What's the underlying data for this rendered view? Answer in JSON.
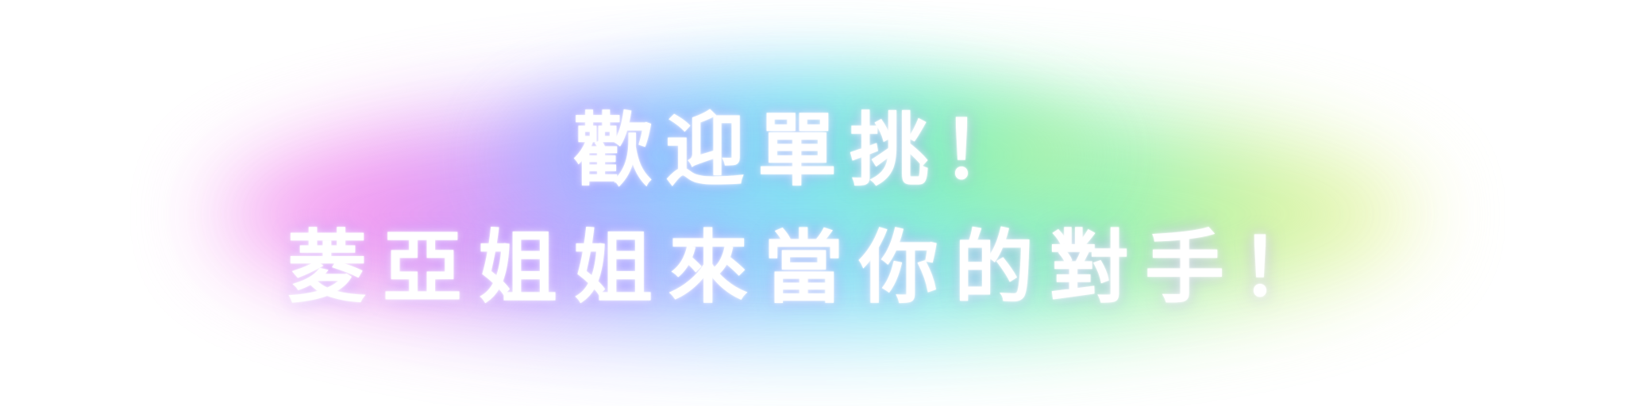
{
  "banner": {
    "line1": "歡迎單挑！",
    "line2": "菱亞姐姐來當你的對手！"
  },
  "colors": {
    "background": "#ffffff",
    "text": "#ffffff",
    "glow_gradient": [
      "#f6a8f2",
      "#ee8cf0",
      "#b7a2ff",
      "#8fc8ff",
      "#7fe6f0",
      "#86f2b4",
      "#c8f29a",
      "#f3f6b0"
    ]
  }
}
